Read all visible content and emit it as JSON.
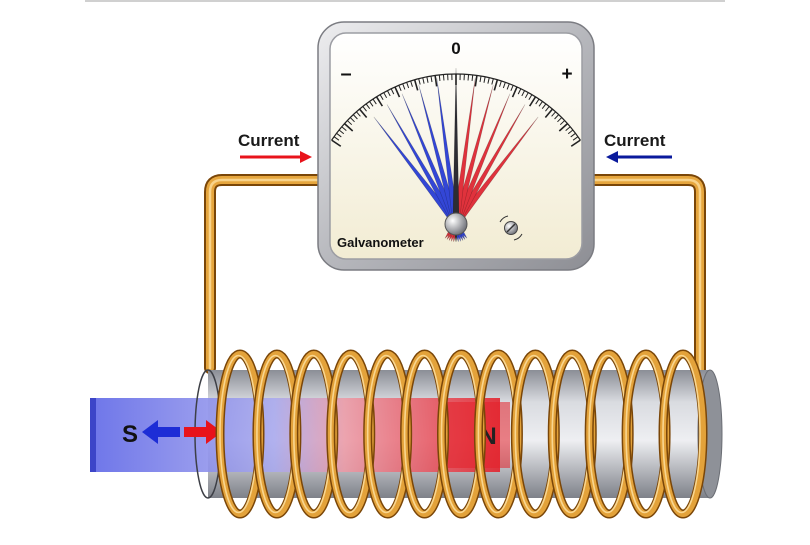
{
  "meter": {
    "label": "Galvanometer",
    "zero_label": "0",
    "minus_label": "–",
    "plus_label": "+",
    "needle_count_each_side": 5
  },
  "currents": {
    "left_label": "Current",
    "right_label": "Current",
    "left_arrow_color": "#e8131b",
    "right_arrow_color": "#0a1a9c"
  },
  "magnet": {
    "south_label": "S",
    "north_label": "N",
    "south_color": "#4b55e0",
    "north_color": "#e8202a"
  },
  "colors": {
    "wire": "#d99a2b",
    "needle_blue": "#3346d6",
    "needle_red": "#e0323c",
    "meter_face": "#fbf6e2",
    "meter_frame": "#a7a8ad"
  },
  "coil": {
    "turns": 13
  }
}
